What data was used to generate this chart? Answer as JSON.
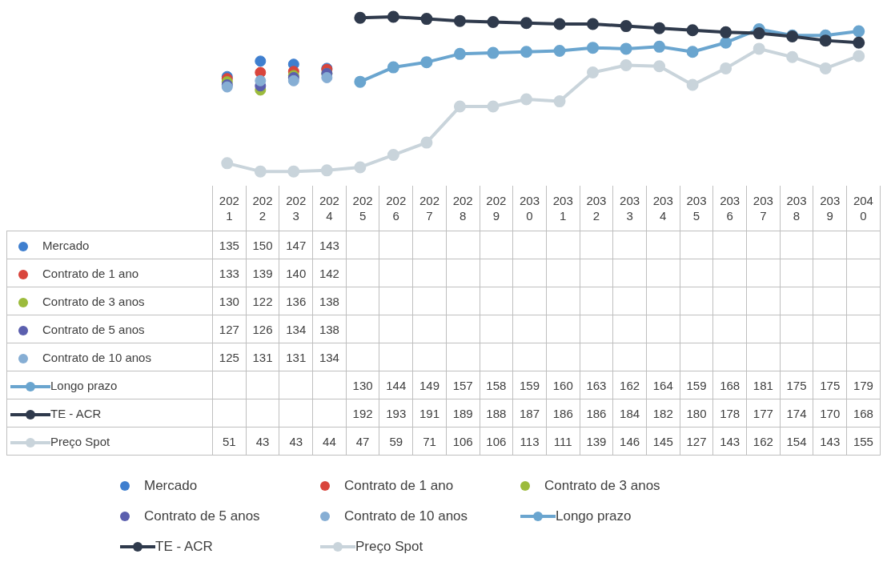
{
  "chart_data": {
    "type": "line",
    "categories": [
      "2021",
      "2022",
      "2023",
      "2024",
      "2025",
      "2026",
      "2027",
      "2028",
      "2029",
      "2030",
      "2031",
      "2032",
      "2033",
      "2034",
      "2035",
      "2036",
      "2037",
      "2038",
      "2039",
      "2040"
    ],
    "series": [
      {
        "name": "Mercado",
        "type": "scatter",
        "color": "#3f7fcf",
        "values": [
          135,
          150,
          147,
          143,
          null,
          null,
          null,
          null,
          null,
          null,
          null,
          null,
          null,
          null,
          null,
          null,
          null,
          null,
          null,
          null
        ]
      },
      {
        "name": "Contrato de 1 ano",
        "type": "scatter",
        "color": "#d9453c",
        "values": [
          133,
          139,
          140,
          142,
          null,
          null,
          null,
          null,
          null,
          null,
          null,
          null,
          null,
          null,
          null,
          null,
          null,
          null,
          null,
          null
        ]
      },
      {
        "name": "Contrato de 3 anos",
        "type": "scatter",
        "color": "#9cbb3c",
        "values": [
          130,
          122,
          136,
          138,
          null,
          null,
          null,
          null,
          null,
          null,
          null,
          null,
          null,
          null,
          null,
          null,
          null,
          null,
          null,
          null
        ]
      },
      {
        "name": "Contrato de 5 anos",
        "type": "scatter",
        "color": "#5b5fae",
        "values": [
          127,
          126,
          134,
          138,
          null,
          null,
          null,
          null,
          null,
          null,
          null,
          null,
          null,
          null,
          null,
          null,
          null,
          null,
          null,
          null
        ]
      },
      {
        "name": "Contrato de 10 anos",
        "type": "scatter",
        "color": "#86aed4",
        "values": [
          125,
          131,
          131,
          134,
          null,
          null,
          null,
          null,
          null,
          null,
          null,
          null,
          null,
          null,
          null,
          null,
          null,
          null,
          null,
          null
        ]
      },
      {
        "name": "Longo prazo",
        "type": "line",
        "color": "#6aa5cf",
        "values": [
          null,
          null,
          null,
          null,
          130,
          144,
          149,
          157,
          158,
          159,
          160,
          163,
          162,
          164,
          159,
          168,
          181,
          175,
          175,
          179
        ]
      },
      {
        "name": "TE - ACR",
        "type": "line",
        "color": "#2f3a4c",
        "values": [
          null,
          null,
          null,
          null,
          192,
          193,
          191,
          189,
          188,
          187,
          186,
          186,
          184,
          182,
          180,
          178,
          177,
          174,
          170,
          168
        ]
      },
      {
        "name": "Preço Spot",
        "type": "line",
        "color": "#c9d4db",
        "values": [
          51,
          43,
          43,
          44,
          47,
          59,
          71,
          106,
          106,
          113,
          111,
          139,
          146,
          145,
          127,
          143,
          162,
          154,
          143,
          155
        ]
      }
    ],
    "marker": "circle",
    "data_labels": true,
    "legend": "bottom",
    "grid": false,
    "tick_labels": "x"
  }
}
